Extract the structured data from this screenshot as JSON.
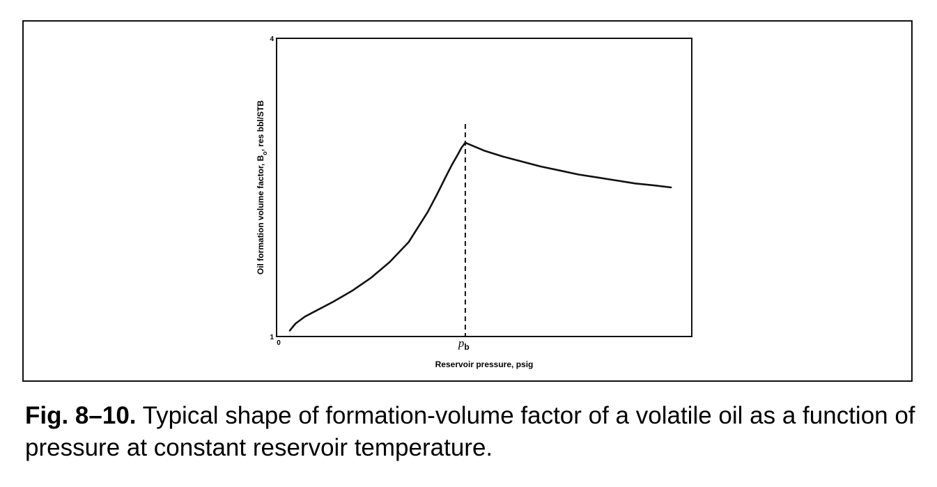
{
  "caption": {
    "figure_number": "Fig. 8–10.",
    "text": "Typical shape of formation-volume factor of a volatile oil as a function of pressure at constant reservoir temperature."
  },
  "chart_data": {
    "type": "line",
    "xlabel": "Reservoir pressure, psig",
    "ylabel_prefix": "Oil formation volume factor, B",
    "ylabel_subscript": "o",
    "ylabel_suffix": ", res bbl/STB",
    "x_tick_labels": [
      {
        "x": 0,
        "text": "0"
      },
      {
        "x": 1,
        "text": "p",
        "sub": "b"
      }
    ],
    "y_tick_labels": [
      {
        "y": 1,
        "text": "1"
      },
      {
        "y": 4,
        "text": "4"
      }
    ],
    "xlim": [
      0,
      2.2
    ],
    "ylim": [
      1,
      4
    ],
    "grid": false,
    "bubble_point_marker": {
      "x": 1,
      "style": "dashed"
    },
    "series": [
      {
        "x": [
          0.07,
          0.1,
          0.15,
          0.2,
          0.3,
          0.4,
          0.5,
          0.6,
          0.7,
          0.8,
          0.85,
          0.9,
          0.93,
          0.96,
          0.98,
          1.0
        ],
        "y": [
          1.06,
          1.13,
          1.2,
          1.25,
          1.35,
          1.46,
          1.59,
          1.75,
          1.95,
          2.25,
          2.43,
          2.62,
          2.73,
          2.83,
          2.9,
          2.95
        ]
      },
      {
        "x": [
          1.0,
          1.1,
          1.2,
          1.3,
          1.4,
          1.5,
          1.6,
          1.7,
          1.8,
          1.9,
          2.0,
          2.09
        ],
        "y": [
          2.95,
          2.87,
          2.81,
          2.76,
          2.71,
          2.67,
          2.63,
          2.6,
          2.57,
          2.54,
          2.52,
          2.5
        ]
      }
    ]
  }
}
